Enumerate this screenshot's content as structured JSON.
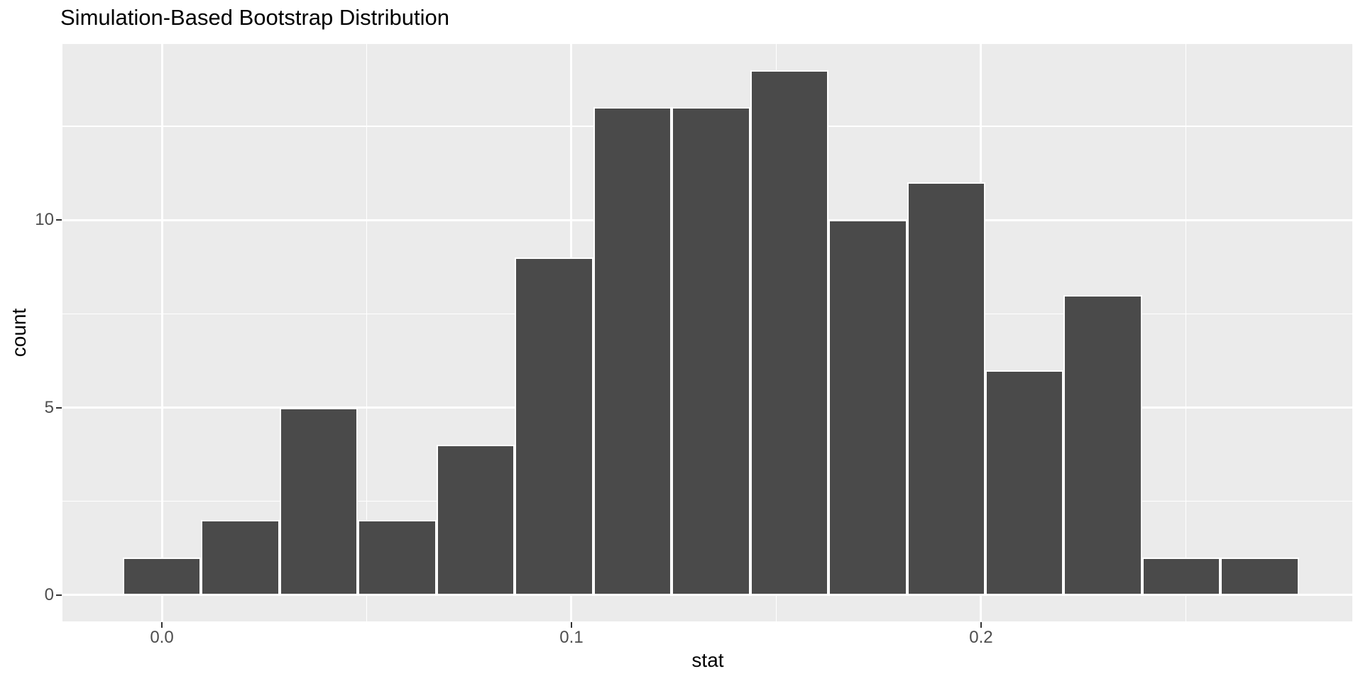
{
  "chart_data": {
    "type": "bar",
    "subtype": "histogram",
    "title": "Simulation-Based Bootstrap Distribution",
    "xlabel": "stat",
    "ylabel": "count",
    "legend_position": "none",
    "grid": true,
    "bin_width": 0.019146,
    "bin_centers": [
      0.0,
      0.019146,
      0.038292,
      0.057438,
      0.076584,
      0.09573,
      0.114876,
      0.134022,
      0.153168,
      0.172314,
      0.19146,
      0.210606,
      0.229752,
      0.248898,
      0.268044
    ],
    "counts": [
      1,
      2,
      5,
      2,
      4,
      9,
      13,
      13,
      14,
      10,
      11,
      6,
      8,
      1,
      1
    ],
    "x_axis": {
      "major_ticks": [
        0.0,
        0.1,
        0.2
      ],
      "tick_labels": [
        "0.0",
        "0.1",
        "0.2"
      ],
      "minor_gridlines": [
        0.05,
        0.15,
        0.25
      ],
      "range": [
        -0.024265,
        0.29065
      ]
    },
    "y_axis": {
      "major_ticks": [
        0,
        5,
        10
      ],
      "tick_labels": [
        "0",
        "5",
        "10"
      ],
      "minor_gridlines": [
        2.5,
        7.5,
        12.5
      ],
      "range": [
        -0.7,
        14.69
      ]
    },
    "colors": {
      "bar_fill": "#4a4a4a",
      "bar_stroke": "#ffffff",
      "panel_bg": "#ebebeb",
      "major_grid": "#ffffff",
      "minor_grid": "#ffffff",
      "tick_mark": "#333333",
      "tick_label_text": "#4d4d4d",
      "axis_title_text": "#000000",
      "title_text": "#000000"
    }
  }
}
